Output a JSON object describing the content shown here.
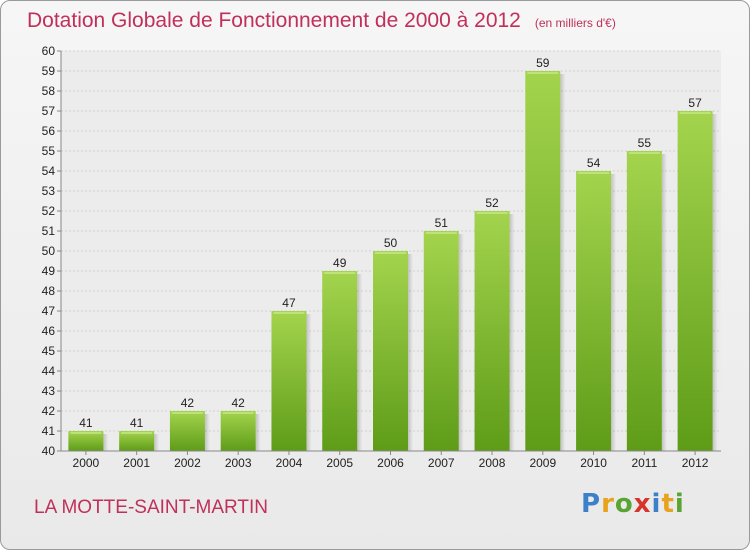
{
  "title": "Dotation Globale de Fonctionnement de 2000 à 2012",
  "unit": "(en milliers d'€)",
  "commune": "LA MOTTE-SAINT-MARTIN",
  "logo": {
    "text": "Proxiti",
    "colors": [
      "#3d7fc8",
      "#e8a21c",
      "#5aa532",
      "#d7352b",
      "#3d7fc8",
      "#e8a21c",
      "#5aa532"
    ]
  },
  "colors": {
    "bar_top": "#a4d44e",
    "bar_bottom": "#5e9c18",
    "title": "#c1305a"
  },
  "chart_data": {
    "type": "bar",
    "categories": [
      "2000",
      "2001",
      "2002",
      "2003",
      "2004",
      "2005",
      "2006",
      "2007",
      "2008",
      "2009",
      "2010",
      "2011",
      "2012"
    ],
    "values": [
      41,
      41,
      42,
      42,
      47,
      49,
      50,
      51,
      52,
      59,
      54,
      55,
      57
    ],
    "ylim": [
      40,
      60
    ],
    "yticks": [
      40,
      41,
      42,
      43,
      44,
      45,
      46,
      47,
      48,
      49,
      50,
      51,
      52,
      53,
      54,
      55,
      56,
      57,
      58,
      59,
      60
    ],
    "grid": true
  }
}
